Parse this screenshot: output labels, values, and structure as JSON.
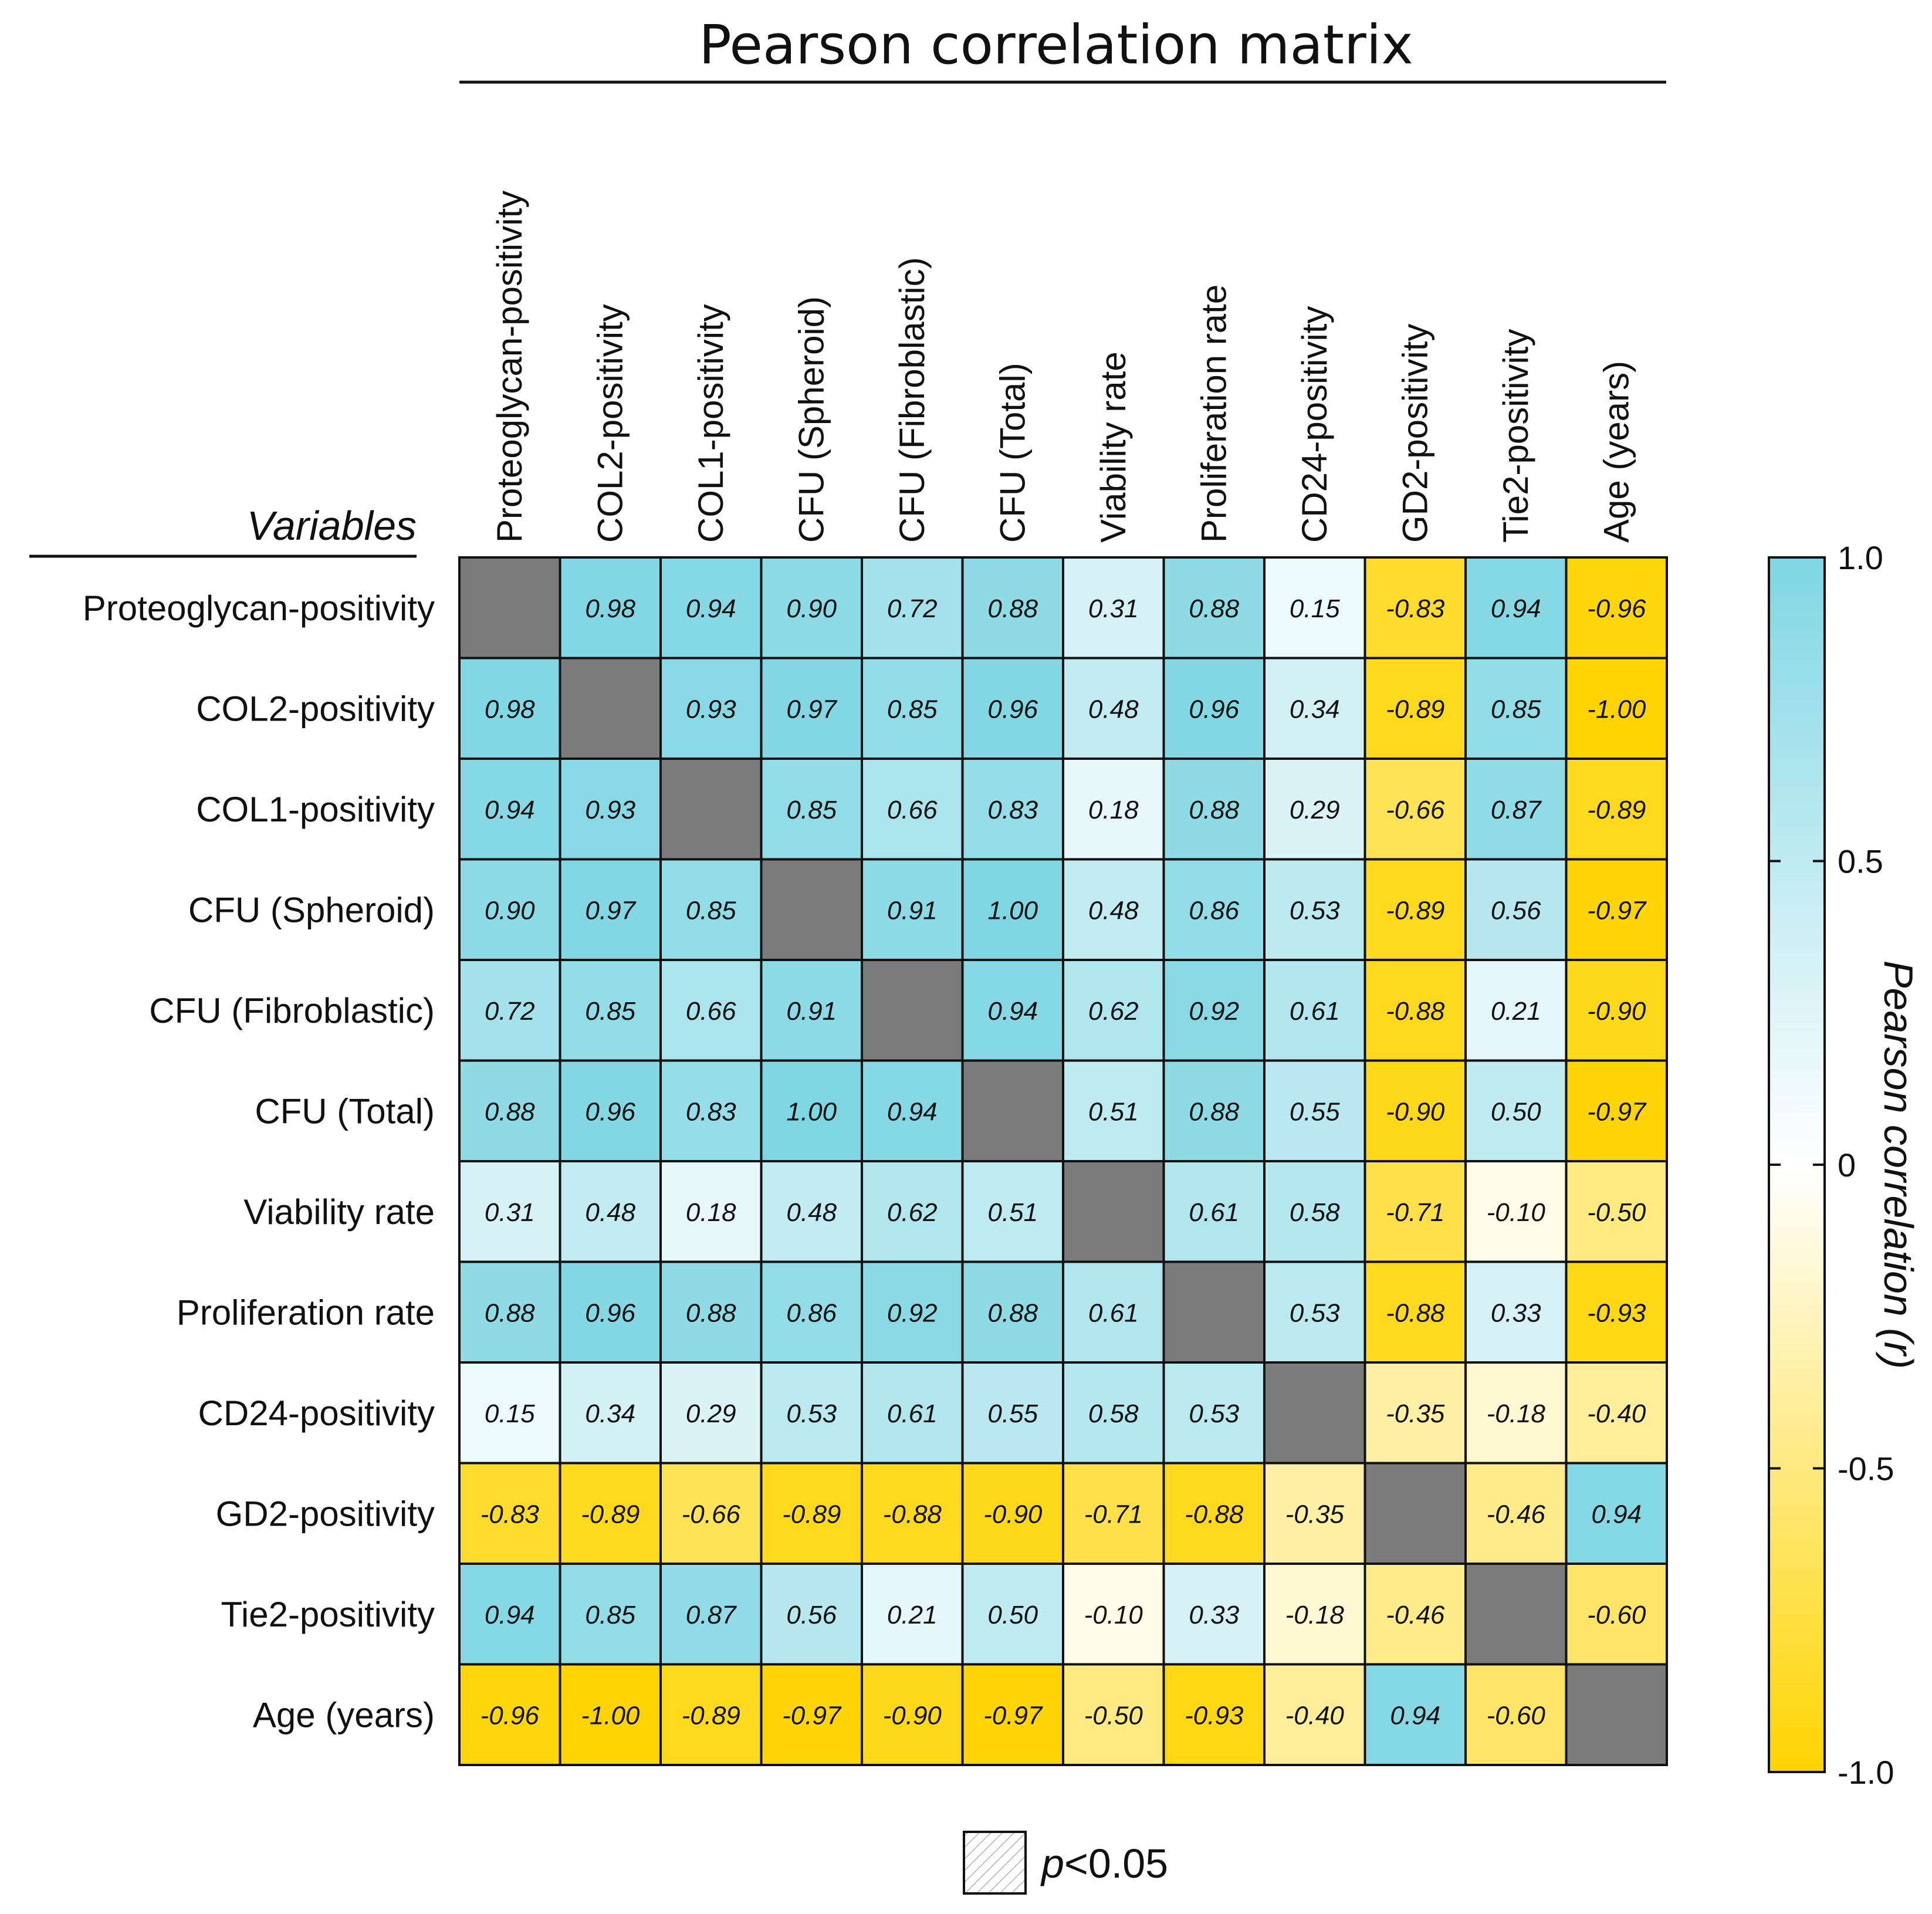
{
  "chart_data": {
    "type": "heatmap",
    "title": "Pearson correlation matrix",
    "axis_title": "Variables",
    "variables": [
      "Proteoglycan-positivity",
      "COL2-positivity",
      "COL1-positivity",
      "CFU (Spheroid)",
      "CFU (Fibroblastic)",
      "CFU (Total)",
      "Viability rate",
      "Proliferation rate",
      "CD24-positivity",
      "GD2-positivity",
      "Tie2-positivity",
      "Age (years)"
    ],
    "matrix": [
      [
        null,
        0.98,
        0.94,
        0.9,
        0.72,
        0.88,
        0.31,
        0.88,
        0.15,
        -0.83,
        0.94,
        -0.96
      ],
      [
        0.98,
        null,
        0.93,
        0.97,
        0.85,
        0.96,
        0.48,
        0.96,
        0.34,
        -0.89,
        0.85,
        -1.0
      ],
      [
        0.94,
        0.93,
        null,
        0.85,
        0.66,
        0.83,
        0.18,
        0.88,
        0.29,
        -0.66,
        0.87,
        -0.89
      ],
      [
        0.9,
        0.97,
        0.85,
        null,
        0.91,
        1.0,
        0.48,
        0.86,
        0.53,
        -0.89,
        0.56,
        -0.97
      ],
      [
        0.72,
        0.85,
        0.66,
        0.91,
        null,
        0.94,
        0.62,
        0.92,
        0.61,
        -0.88,
        0.21,
        -0.9
      ],
      [
        0.88,
        0.96,
        0.83,
        1.0,
        0.94,
        null,
        0.51,
        0.88,
        0.55,
        -0.9,
        0.5,
        -0.97
      ],
      [
        0.31,
        0.48,
        0.18,
        0.48,
        0.62,
        0.51,
        null,
        0.61,
        0.58,
        -0.71,
        -0.1,
        -0.5
      ],
      [
        0.88,
        0.96,
        0.88,
        0.86,
        0.92,
        0.88,
        0.61,
        null,
        0.53,
        -0.88,
        0.33,
        -0.93
      ],
      [
        0.15,
        0.34,
        0.29,
        0.53,
        0.61,
        0.55,
        0.58,
        0.53,
        null,
        -0.35,
        -0.18,
        -0.4
      ],
      [
        -0.83,
        -0.89,
        -0.66,
        -0.89,
        -0.88,
        -0.9,
        -0.71,
        -0.88,
        -0.35,
        null,
        -0.46,
        0.94
      ],
      [
        0.94,
        0.85,
        0.87,
        0.56,
        0.21,
        0.5,
        -0.1,
        0.33,
        -0.18,
        -0.46,
        null,
        -0.6
      ],
      [
        -0.96,
        -1.0,
        -0.89,
        -0.97,
        -0.9,
        -0.97,
        -0.5,
        -0.93,
        -0.4,
        0.94,
        -0.6,
        null
      ]
    ],
    "significant": [
      [
        0,
        0,
        0,
        0,
        0,
        0,
        0,
        0,
        0,
        0,
        0,
        0
      ],
      [
        0,
        0,
        0,
        0,
        0,
        0,
        0,
        0,
        0,
        0,
        0,
        0
      ],
      [
        0,
        0,
        0,
        0,
        0,
        0,
        0,
        0,
        0,
        0,
        0,
        0
      ],
      [
        0,
        0,
        0,
        0,
        0,
        0,
        0,
        0,
        0,
        0,
        0,
        0
      ],
      [
        0,
        0,
        0,
        0,
        0,
        0,
        0,
        0,
        0,
        0,
        0,
        0
      ],
      [
        0,
        0,
        0,
        0,
        0,
        0,
        0,
        0,
        0,
        0,
        0,
        0
      ],
      [
        0,
        0,
        0,
        0,
        0,
        0,
        0,
        0,
        0,
        0,
        0,
        0
      ],
      [
        0,
        0,
        0,
        0,
        0,
        0,
        0,
        0,
        0,
        0,
        0,
        0
      ],
      [
        0,
        0,
        0,
        0,
        0,
        0,
        0,
        0,
        0,
        0,
        0,
        0
      ],
      [
        0,
        0,
        0,
        0,
        0,
        0,
        0,
        0,
        0,
        0,
        0,
        0
      ],
      [
        0,
        0,
        0,
        0,
        0,
        0,
        0,
        0,
        0,
        0,
        0,
        0
      ],
      [
        0,
        0,
        0,
        0,
        0,
        0,
        0,
        0,
        0,
        0,
        0,
        0
      ]
    ],
    "colorbar": {
      "label": "Pearson correlation (r)",
      "range": [
        -1.0,
        1.0
      ],
      "ticks": [
        "1.0",
        "0.5",
        "0",
        "-0.5",
        "-1.0"
      ],
      "tick_values": [
        1.0,
        0.5,
        0,
        -0.5,
        -1.0
      ],
      "color_positive": "#7fd6e3",
      "color_zero": "#ffffff",
      "color_negative": "#ffd400",
      "diagonal_color": "#7b7b7b"
    },
    "legend": {
      "label_italic": "p",
      "label_rest": "<0.05"
    }
  }
}
